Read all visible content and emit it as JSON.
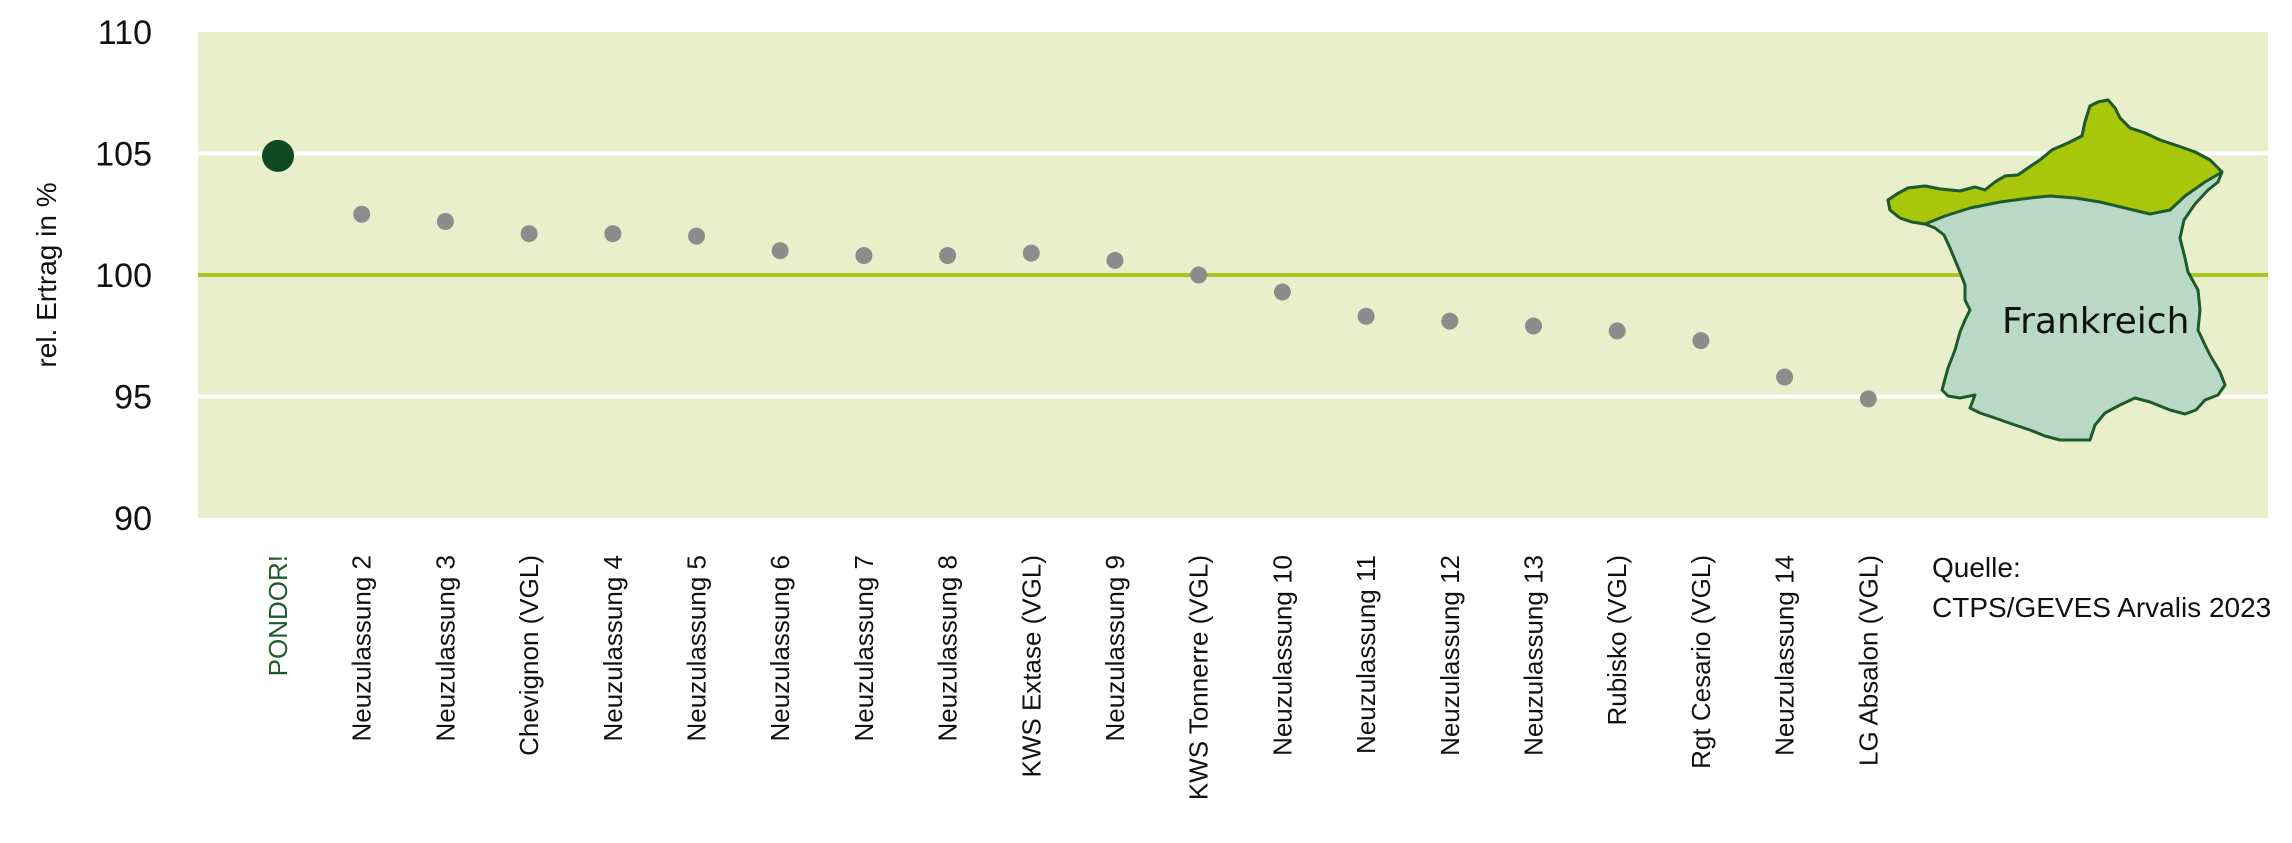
{
  "chart_data": {
    "type": "scatter",
    "ylabel": "rel. Ertrag in %",
    "ylim": [
      90,
      110
    ],
    "yticks": [
      90,
      95,
      100,
      105,
      110
    ],
    "reference_line": 100,
    "grid": true,
    "categories": [
      "PONDOR!",
      "Neuzulassung 2",
      "Neuzulassung 3",
      "Chevignon (VGL)",
      "Neuzulassung 4",
      "Neuzulassung 5",
      "Neuzulassung 6",
      "Neuzulassung 7",
      "Neuzulassung 8",
      "KWS Extase (VGL)",
      "Neuzulassung 9",
      "KWS Tonnerre (VGL)",
      "Neuzulassung 10",
      "Neuzulassung 11",
      "Neuzulassung 12",
      "Neuzulassung 13",
      "Rubisko (VGL)",
      "Rgt Cesario (VGL)",
      "Neuzulassung 14",
      "LG Absalon (VGL)"
    ],
    "values": [
      104.9,
      102.5,
      102.2,
      101.7,
      101.7,
      101.6,
      101.0,
      100.8,
      100.8,
      100.9,
      100.6,
      100.0,
      99.3,
      98.3,
      98.1,
      97.9,
      97.7,
      97.3,
      95.8,
      94.9
    ],
    "highlight": "PONDOR!",
    "map_label": "Frankreich",
    "source_lines": [
      "Quelle:",
      "CTPS/GEVES Arvalis 2023"
    ],
    "colors": {
      "background": "#e8efca",
      "gridline": "#ffffff",
      "reference": "#a9c522",
      "point": "#8c8c8c",
      "highlight_point": "#0f4a24",
      "highlight_label": "#1f5a2e",
      "map_fill": "#b9d9c6",
      "map_north": "#a9c70a",
      "map_stroke": "#1d5a2c"
    }
  }
}
